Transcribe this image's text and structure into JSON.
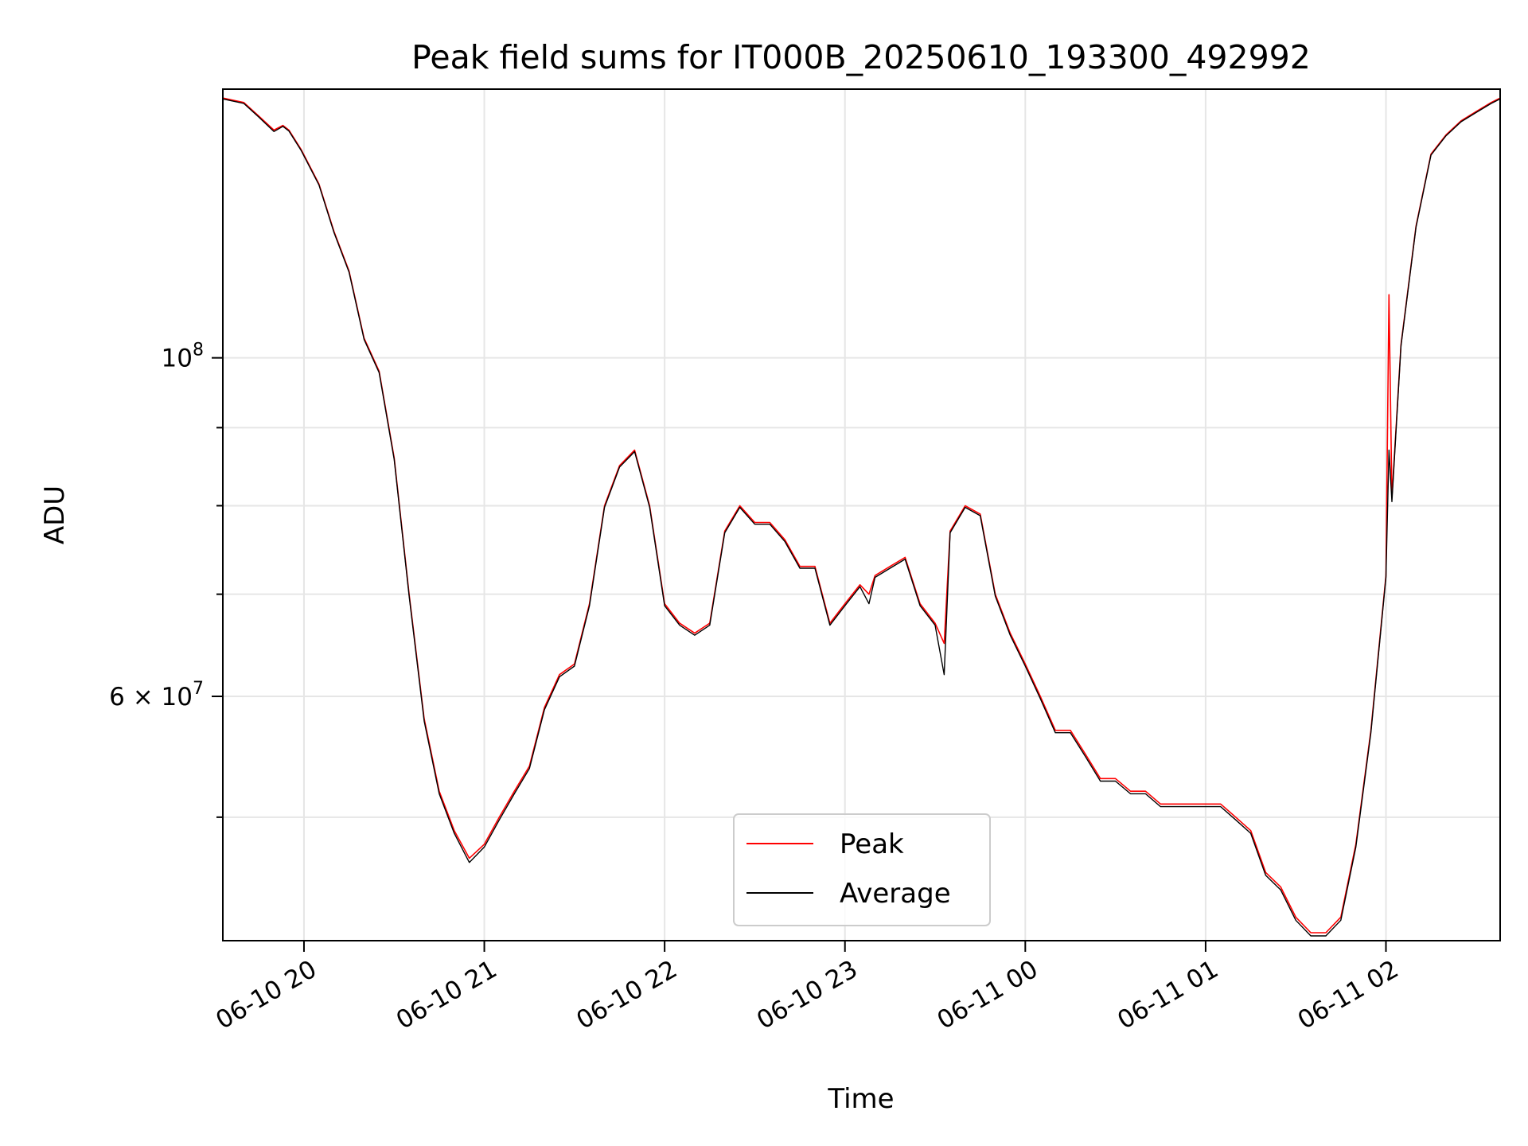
{
  "chart_data": {
    "type": "line",
    "title": "Peak field sums for IT000B_20250610_193300_492992",
    "xlabel": "Time",
    "ylabel": "ADU",
    "x_scale": "time",
    "y_scale": "log",
    "xlim": [
      "2025-06-10 19:33",
      "2025-06-11 02:38"
    ],
    "ylim": [
      41500000,
      150000000
    ],
    "grid": true,
    "legend_position": "lower center",
    "x_tick_labels": [
      "06-10 20",
      "06-10 21",
      "06-10 22",
      "06-10 23",
      "06-11 00",
      "06-11 01",
      "06-11 02"
    ],
    "x_ticks": [
      "2025-06-10 20:00",
      "2025-06-10 21:00",
      "2025-06-10 22:00",
      "2025-06-10 23:00",
      "2025-06-11 00:00",
      "2025-06-11 01:00",
      "2025-06-11 02:00"
    ],
    "y_major_ticks": [
      {
        "value": 100000000,
        "base": "10",
        "exp": "8",
        "coeff": ""
      },
      {
        "value": 60000000,
        "base": "10",
        "exp": "7",
        "coeff": "6 × "
      }
    ],
    "y_minor_ticks": [
      50000000,
      70000000,
      80000000,
      90000000
    ],
    "x": [
      "2025-06-10 19:33",
      "2025-06-10 19:40",
      "2025-06-10 19:45",
      "2025-06-10 19:50",
      "2025-06-10 19:53",
      "2025-06-10 19:55",
      "2025-06-10 19:59",
      "2025-06-10 20:05",
      "2025-06-10 20:10",
      "2025-06-10 20:15",
      "2025-06-10 20:20",
      "2025-06-10 20:25",
      "2025-06-10 20:30",
      "2025-06-10 20:35",
      "2025-06-10 20:40",
      "2025-06-10 20:45",
      "2025-06-10 20:50",
      "2025-06-10 20:55",
      "2025-06-10 21:00",
      "2025-06-10 21:05",
      "2025-06-10 21:10",
      "2025-06-10 21:15",
      "2025-06-10 21:20",
      "2025-06-10 21:25",
      "2025-06-10 21:30",
      "2025-06-10 21:35",
      "2025-06-10 21:40",
      "2025-06-10 21:45",
      "2025-06-10 21:50",
      "2025-06-10 21:55",
      "2025-06-10 22:00",
      "2025-06-10 22:05",
      "2025-06-10 22:10",
      "2025-06-10 22:15",
      "2025-06-10 22:20",
      "2025-06-10 22:25",
      "2025-06-10 22:30",
      "2025-06-10 22:35",
      "2025-06-10 22:40",
      "2025-06-10 22:45",
      "2025-06-10 22:50",
      "2025-06-10 22:55",
      "2025-06-10 23:00",
      "2025-06-10 23:05",
      "2025-06-10 23:08",
      "2025-06-10 23:10",
      "2025-06-10 23:15",
      "2025-06-10 23:20",
      "2025-06-10 23:25",
      "2025-06-10 23:30",
      "2025-06-10 23:33",
      "2025-06-10 23:35",
      "2025-06-10 23:40",
      "2025-06-10 23:45",
      "2025-06-10 23:50",
      "2025-06-10 23:55",
      "2025-06-11 00:00",
      "2025-06-11 00:05",
      "2025-06-11 00:10",
      "2025-06-11 00:15",
      "2025-06-11 00:20",
      "2025-06-11 00:25",
      "2025-06-11 00:30",
      "2025-06-11 00:35",
      "2025-06-11 00:40",
      "2025-06-11 00:45",
      "2025-06-11 00:50",
      "2025-06-11 00:55",
      "2025-06-11 01:00",
      "2025-06-11 01:05",
      "2025-06-11 01:10",
      "2025-06-11 01:15",
      "2025-06-11 01:20",
      "2025-06-11 01:25",
      "2025-06-11 01:30",
      "2025-06-11 01:35",
      "2025-06-11 01:40",
      "2025-06-11 01:45",
      "2025-06-11 01:50",
      "2025-06-11 01:55",
      "2025-06-11 02:00",
      "2025-06-11 02:01",
      "2025-06-11 02:02",
      "2025-06-11 02:05",
      "2025-06-11 02:10",
      "2025-06-11 02:15",
      "2025-06-11 02:20",
      "2025-06-11 02:25",
      "2025-06-11 02:30",
      "2025-06-11 02:35",
      "2025-06-11 02:38"
    ],
    "series": [
      {
        "name": "Peak",
        "color": "#ff0000",
        "values": [
          148000000,
          147000000,
          144000000,
          141000000,
          142000000,
          141000000,
          137000000,
          130000000,
          121000000,
          114000000,
          103000000,
          98000000,
          86000000,
          70000000,
          58000000,
          52000000,
          49000000,
          47000000,
          48000000,
          50000000,
          52000000,
          54000000,
          59000000,
          62000000,
          63000000,
          69000000,
          80000000,
          85000000,
          87000000,
          80000000,
          69000000,
          67000000,
          66000000,
          67000000,
          77000000,
          80000000,
          78000000,
          78000000,
          76000000,
          73000000,
          73000000,
          67000000,
          69000000,
          71000000,
          70000000,
          72000000,
          73000000,
          74000000,
          69000000,
          67000000,
          65000000,
          77000000,
          80000000,
          79000000,
          70000000,
          66000000,
          63000000,
          60000000,
          57000000,
          57000000,
          55000000,
          53000000,
          53000000,
          52000000,
          52000000,
          51000000,
          51000000,
          51000000,
          51000000,
          51000000,
          50000000,
          49000000,
          46000000,
          45000000,
          43000000,
          42000000,
          42000000,
          43000000,
          48000000,
          57000000,
          72000000,
          110000000,
          81000000,
          102000000,
          122000000,
          136000000,
          140000000,
          143000000,
          145000000,
          147000000,
          148000000
        ]
      },
      {
        "name": "Average",
        "color": "#000000",
        "values": [
          147800000,
          146800000,
          143800000,
          140700000,
          141800000,
          140800000,
          136800000,
          129800000,
          120800000,
          113800000,
          102800000,
          97800000,
          85800000,
          69800000,
          57800000,
          51800000,
          48800000,
          46700000,
          47800000,
          49800000,
          51800000,
          53800000,
          58800000,
          61800000,
          62800000,
          68800000,
          79800000,
          84800000,
          86800000,
          79800000,
          68800000,
          66800000,
          65800000,
          66800000,
          76800000,
          79800000,
          77800000,
          77800000,
          75800000,
          72800000,
          72800000,
          66800000,
          68800000,
          70800000,
          69000000,
          71800000,
          72800000,
          73800000,
          68800000,
          66800000,
          62000000,
          76800000,
          79800000,
          78800000,
          69800000,
          65800000,
          62800000,
          59800000,
          56800000,
          56800000,
          54800000,
          52800000,
          52800000,
          51800000,
          51800000,
          50800000,
          50800000,
          50800000,
          50800000,
          50800000,
          49800000,
          48800000,
          45800000,
          44800000,
          42800000,
          41800000,
          41800000,
          42800000,
          47800000,
          56800000,
          71800000,
          87000000,
          80500000,
          101800000,
          121800000,
          135800000,
          139800000,
          142800000,
          144800000,
          146800000,
          147800000
        ]
      }
    ]
  }
}
